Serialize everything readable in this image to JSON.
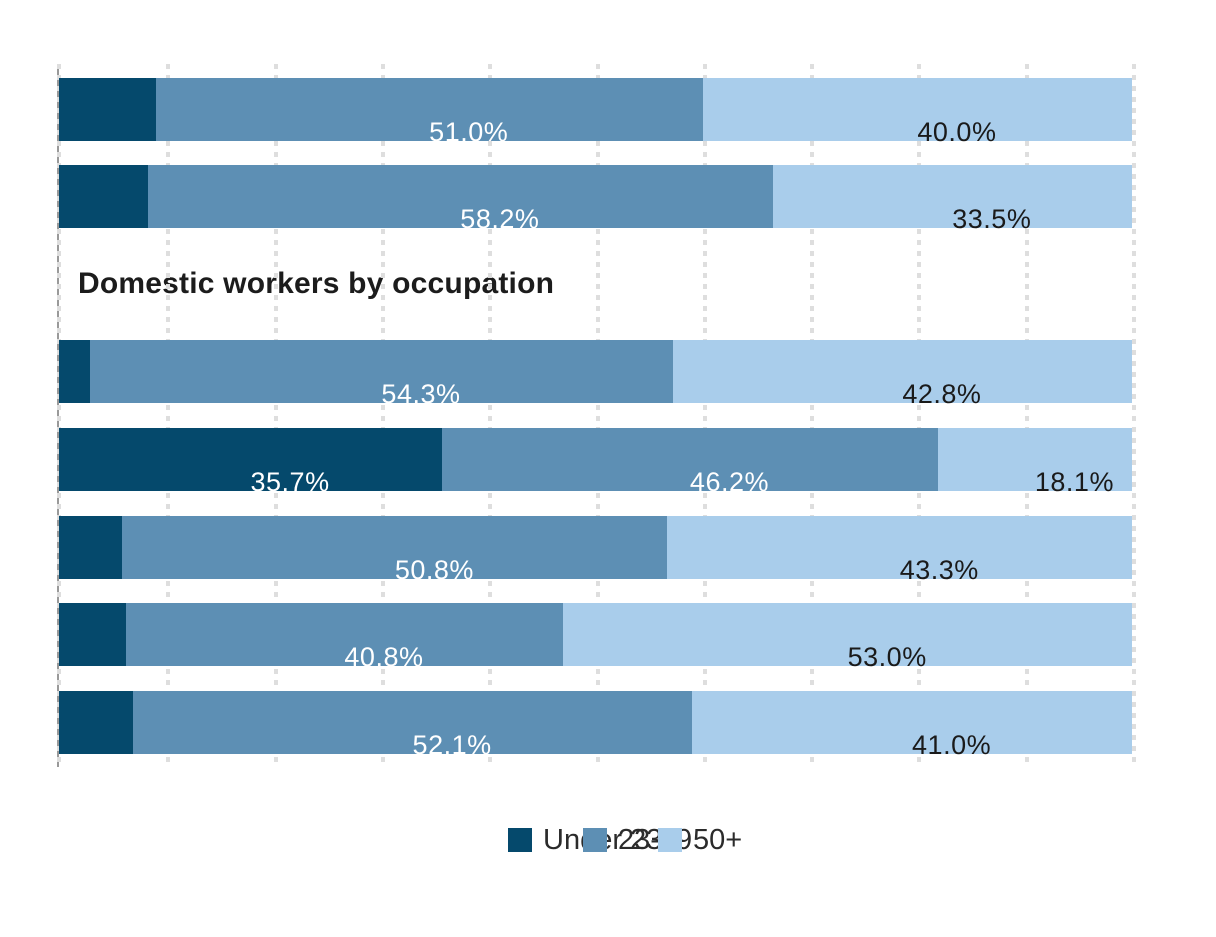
{
  "chart_data": {
    "type": "bar",
    "orientation": "horizontal",
    "stacked": true,
    "unit": "percent",
    "title": "Domestic workers by occupation",
    "title_row_slot": 2,
    "xlim": [
      0,
      100
    ],
    "gridline_step_pct": 10,
    "grid": "vertical-dotted",
    "axis_tick_labels": "none",
    "legend_position": "bottom-center-overlapping",
    "row_count": 7,
    "series": [
      {
        "name": "Under 23",
        "color": "#05496c",
        "label_text_color": "#ffffff",
        "values": [
          9.0,
          8.3,
          2.9,
          35.7,
          5.9,
          6.2,
          6.9
        ],
        "labels": [
          "",
          "",
          "",
          "35.7%",
          "",
          "",
          ""
        ]
      },
      {
        "name": "23-49",
        "color": "#5d8fb4",
        "label_text_color": "#ffffff",
        "values": [
          51.0,
          58.2,
          54.3,
          46.2,
          50.8,
          40.8,
          52.1
        ],
        "labels": [
          "51.0%",
          "58.2%",
          "54.3%",
          "46.2%",
          "50.8%",
          "40.8%",
          "52.1%"
        ]
      },
      {
        "name": "50+",
        "color": "#a9cdeb",
        "label_text_color": "#1a1a1a",
        "values": [
          40.0,
          33.5,
          42.8,
          18.1,
          43.3,
          53.0,
          41.0
        ],
        "labels": [
          "40.0%",
          "33.5%",
          "42.8%",
          "18.1%",
          "43.3%",
          "53.0%",
          "41.0%"
        ]
      }
    ],
    "legend": [
      {
        "label": "Under 23",
        "color": "#05496c"
      },
      {
        "label": "23-49",
        "color": "#5d8fb4"
      },
      {
        "label": "50+",
        "color": "#a9cdeb"
      }
    ]
  }
}
